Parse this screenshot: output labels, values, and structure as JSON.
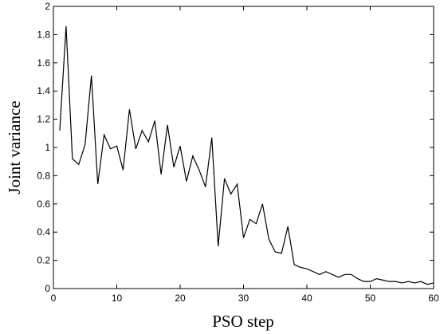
{
  "chart_data": {
    "type": "line",
    "title": "",
    "xlabel": "PSO step",
    "ylabel": "Joint variance",
    "xlim": [
      0,
      60
    ],
    "ylim": [
      0,
      2
    ],
    "grid": false,
    "x_ticks": [
      0,
      10,
      20,
      30,
      40,
      50,
      60
    ],
    "y_ticks": [
      0,
      0.2,
      0.4,
      0.6,
      0.8,
      1,
      1.2,
      1.4,
      1.6,
      1.8,
      2
    ],
    "x_tick_labels": [
      "0",
      "10",
      "20",
      "30",
      "40",
      "50",
      "60"
    ],
    "y_tick_labels": [
      "0",
      "0.2",
      "0.4",
      "0.6",
      "0.8",
      "1",
      "1.2",
      "1.4",
      "1.6",
      "1.8",
      "2"
    ],
    "series": [
      {
        "color": "#000000",
        "x": [
          1,
          2,
          3,
          4,
          5,
          6,
          7,
          8,
          9,
          10,
          11,
          12,
          13,
          14,
          15,
          16,
          17,
          18,
          19,
          20,
          21,
          22,
          23,
          24,
          25,
          26,
          27,
          28,
          29,
          30,
          31,
          32,
          33,
          34,
          35,
          36,
          37,
          38,
          39,
          40,
          41,
          42,
          43,
          44,
          45,
          46,
          47,
          48,
          49,
          50,
          51,
          52,
          53,
          54,
          55,
          56,
          57,
          58,
          59,
          60
        ],
        "values": [
          1.12,
          1.86,
          0.92,
          0.88,
          1.02,
          1.51,
          0.74,
          1.09,
          0.99,
          1.01,
          0.84,
          1.27,
          0.99,
          1.12,
          1.04,
          1.19,
          0.81,
          1.16,
          0.86,
          1.01,
          0.76,
          0.94,
          0.84,
          0.72,
          1.07,
          0.3,
          0.78,
          0.67,
          0.74,
          0.36,
          0.49,
          0.46,
          0.6,
          0.35,
          0.26,
          0.25,
          0.44,
          0.17,
          0.15,
          0.14,
          0.12,
          0.1,
          0.12,
          0.1,
          0.08,
          0.1,
          0.1,
          0.07,
          0.05,
          0.05,
          0.07,
          0.06,
          0.05,
          0.05,
          0.04,
          0.05,
          0.04,
          0.05,
          0.03,
          0.04
        ]
      }
    ]
  }
}
